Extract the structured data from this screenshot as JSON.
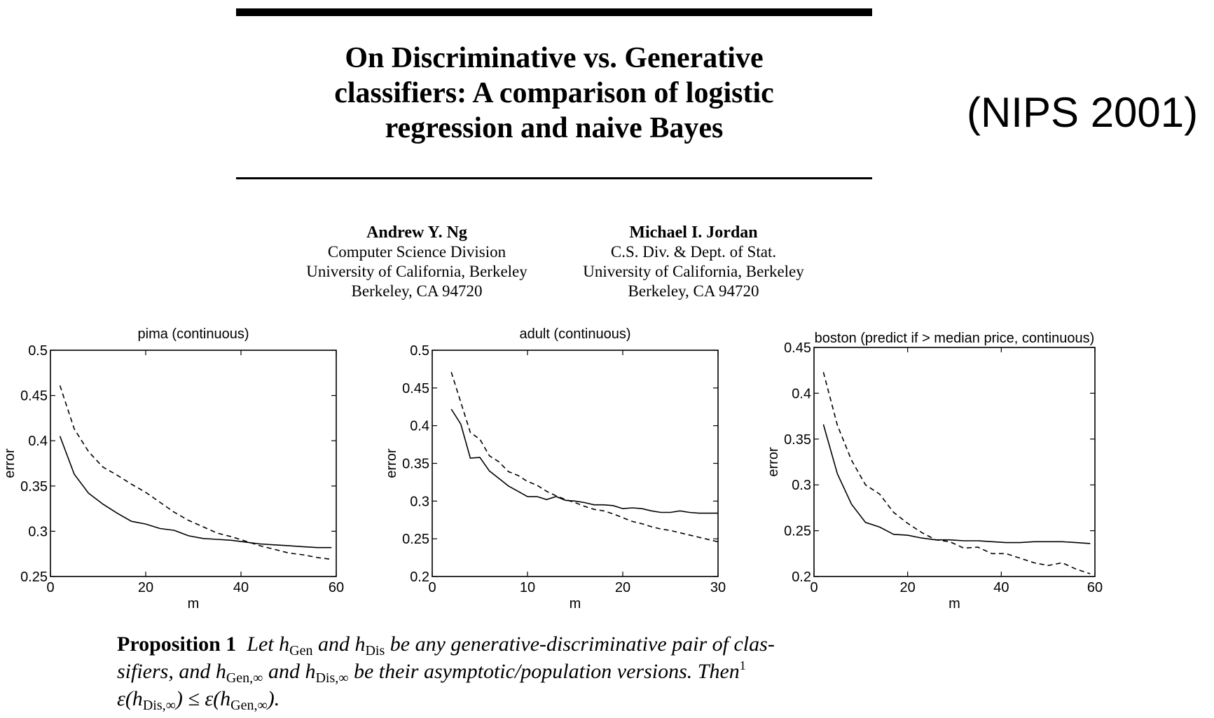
{
  "paper": {
    "title_lines": [
      "On Discriminative vs. Generative",
      "classifiers: A comparison of logistic",
      "regression and naive Bayes"
    ],
    "venue": "(NIPS 2001)",
    "authors": [
      {
        "name": "Andrew Y. Ng",
        "lines": [
          "Computer Science Division",
          "University of California, Berkeley",
          "Berkeley, CA 94720"
        ]
      },
      {
        "name": "Michael I. Jordan",
        "lines": [
          "C.S. Div. & Dept. of Stat.",
          "University of California, Berkeley",
          "Berkeley, CA 94720"
        ]
      }
    ]
  },
  "proposition": {
    "label": "Proposition 1",
    "line1": "Let h_Gen and h_Dis be any generative-discriminative pair of clas-",
    "line2": "sifiers, and h_Gen,∞ and h_Dis,∞ be their asymptotic/population versions. Then^1",
    "line3": "ε(h_Dis,∞) ≤ ε(h_Gen,∞)."
  },
  "chart_data": [
    {
      "type": "line",
      "title": "pima (continuous)",
      "xlabel": "m",
      "ylabel": "error",
      "xlim": [
        0,
        60
      ],
      "ylim": [
        0.25,
        0.5
      ],
      "xticks": [
        "0",
        "20",
        "40",
        "60"
      ],
      "yticks": [
        "0.25",
        "0.3",
        "0.35",
        "0.4",
        "0.45",
        "0.5"
      ],
      "series": [
        {
          "style": "solid",
          "color": "#000000",
          "x": [
            2,
            5,
            8,
            11,
            14,
            17,
            20,
            23,
            26,
            29,
            32,
            35,
            38,
            41,
            44,
            47,
            50,
            53,
            56,
            59
          ],
          "values": [
            0.405,
            0.363,
            0.342,
            0.33,
            0.32,
            0.311,
            0.308,
            0.303,
            0.301,
            0.295,
            0.292,
            0.291,
            0.29,
            0.288,
            0.286,
            0.285,
            0.284,
            0.283,
            0.282,
            0.282
          ]
        },
        {
          "style": "dashed",
          "color": "#000000",
          "x": [
            2,
            5,
            8,
            11,
            14,
            17,
            20,
            23,
            26,
            29,
            32,
            35,
            38,
            41,
            44,
            47,
            50,
            53,
            56,
            59
          ],
          "values": [
            0.461,
            0.413,
            0.388,
            0.371,
            0.362,
            0.352,
            0.343,
            0.332,
            0.321,
            0.312,
            0.305,
            0.298,
            0.294,
            0.289,
            0.284,
            0.28,
            0.276,
            0.274,
            0.271,
            0.269
          ]
        }
      ]
    },
    {
      "type": "line",
      "title": "adult (continuous)",
      "xlabel": "m",
      "ylabel": "error",
      "xlim": [
        0,
        30
      ],
      "ylim": [
        0.2,
        0.5
      ],
      "xticks": [
        "0",
        "10",
        "20",
        "30"
      ],
      "yticks": [
        "0.2",
        "0.25",
        "0.3",
        "0.35",
        "0.4",
        "0.45",
        "0.5"
      ],
      "series": [
        {
          "style": "solid",
          "color": "#000000",
          "x": [
            2,
            3,
            4,
            5,
            6,
            7,
            8,
            9,
            10,
            11,
            12,
            13,
            14,
            15,
            16,
            17,
            18,
            19,
            20,
            21,
            22,
            23,
            24,
            25,
            26,
            27,
            28,
            29,
            30
          ],
          "values": [
            0.422,
            0.402,
            0.357,
            0.358,
            0.34,
            0.33,
            0.32,
            0.313,
            0.306,
            0.306,
            0.302,
            0.306,
            0.301,
            0.3,
            0.298,
            0.295,
            0.295,
            0.294,
            0.29,
            0.291,
            0.29,
            0.287,
            0.285,
            0.285,
            0.287,
            0.285,
            0.284,
            0.284,
            0.284
          ]
        },
        {
          "style": "dashed",
          "color": "#000000",
          "x": [
            2,
            3,
            4,
            5,
            6,
            7,
            8,
            9,
            10,
            11,
            12,
            13,
            14,
            15,
            16,
            17,
            18,
            19,
            20,
            21,
            22,
            23,
            24,
            25,
            26,
            27,
            28,
            29,
            30
          ],
          "values": [
            0.471,
            0.431,
            0.391,
            0.382,
            0.36,
            0.352,
            0.339,
            0.334,
            0.326,
            0.321,
            0.313,
            0.307,
            0.302,
            0.298,
            0.293,
            0.289,
            0.287,
            0.283,
            0.278,
            0.273,
            0.27,
            0.266,
            0.263,
            0.261,
            0.258,
            0.255,
            0.252,
            0.249,
            0.246
          ]
        }
      ]
    },
    {
      "type": "line",
      "title": "boston (predict if > median price, continuous)",
      "xlabel": "m",
      "ylabel": "error",
      "xlim": [
        0,
        60
      ],
      "ylim": [
        0.2,
        0.45
      ],
      "xticks": [
        "0",
        "20",
        "40",
        "60"
      ],
      "yticks": [
        "0.2",
        "0.25",
        "0.3",
        "0.35",
        "0.4",
        "0.45"
      ],
      "series": [
        {
          "style": "solid",
          "color": "#000000",
          "x": [
            2,
            5,
            8,
            11,
            14,
            17,
            20,
            23,
            26,
            29,
            32,
            35,
            38,
            41,
            44,
            47,
            50,
            53,
            56,
            59
          ],
          "values": [
            0.366,
            0.312,
            0.279,
            0.259,
            0.254,
            0.246,
            0.245,
            0.242,
            0.24,
            0.24,
            0.239,
            0.239,
            0.238,
            0.237,
            0.237,
            0.238,
            0.238,
            0.238,
            0.237,
            0.236
          ]
        },
        {
          "style": "dashed",
          "color": "#000000",
          "x": [
            2,
            5,
            8,
            11,
            14,
            17,
            20,
            23,
            26,
            29,
            32,
            35,
            38,
            41,
            44,
            47,
            50,
            53,
            56,
            59
          ],
          "values": [
            0.423,
            0.365,
            0.327,
            0.3,
            0.29,
            0.27,
            0.258,
            0.248,
            0.24,
            0.238,
            0.231,
            0.232,
            0.225,
            0.225,
            0.22,
            0.215,
            0.212,
            0.215,
            0.208,
            0.203
          ]
        }
      ]
    }
  ]
}
